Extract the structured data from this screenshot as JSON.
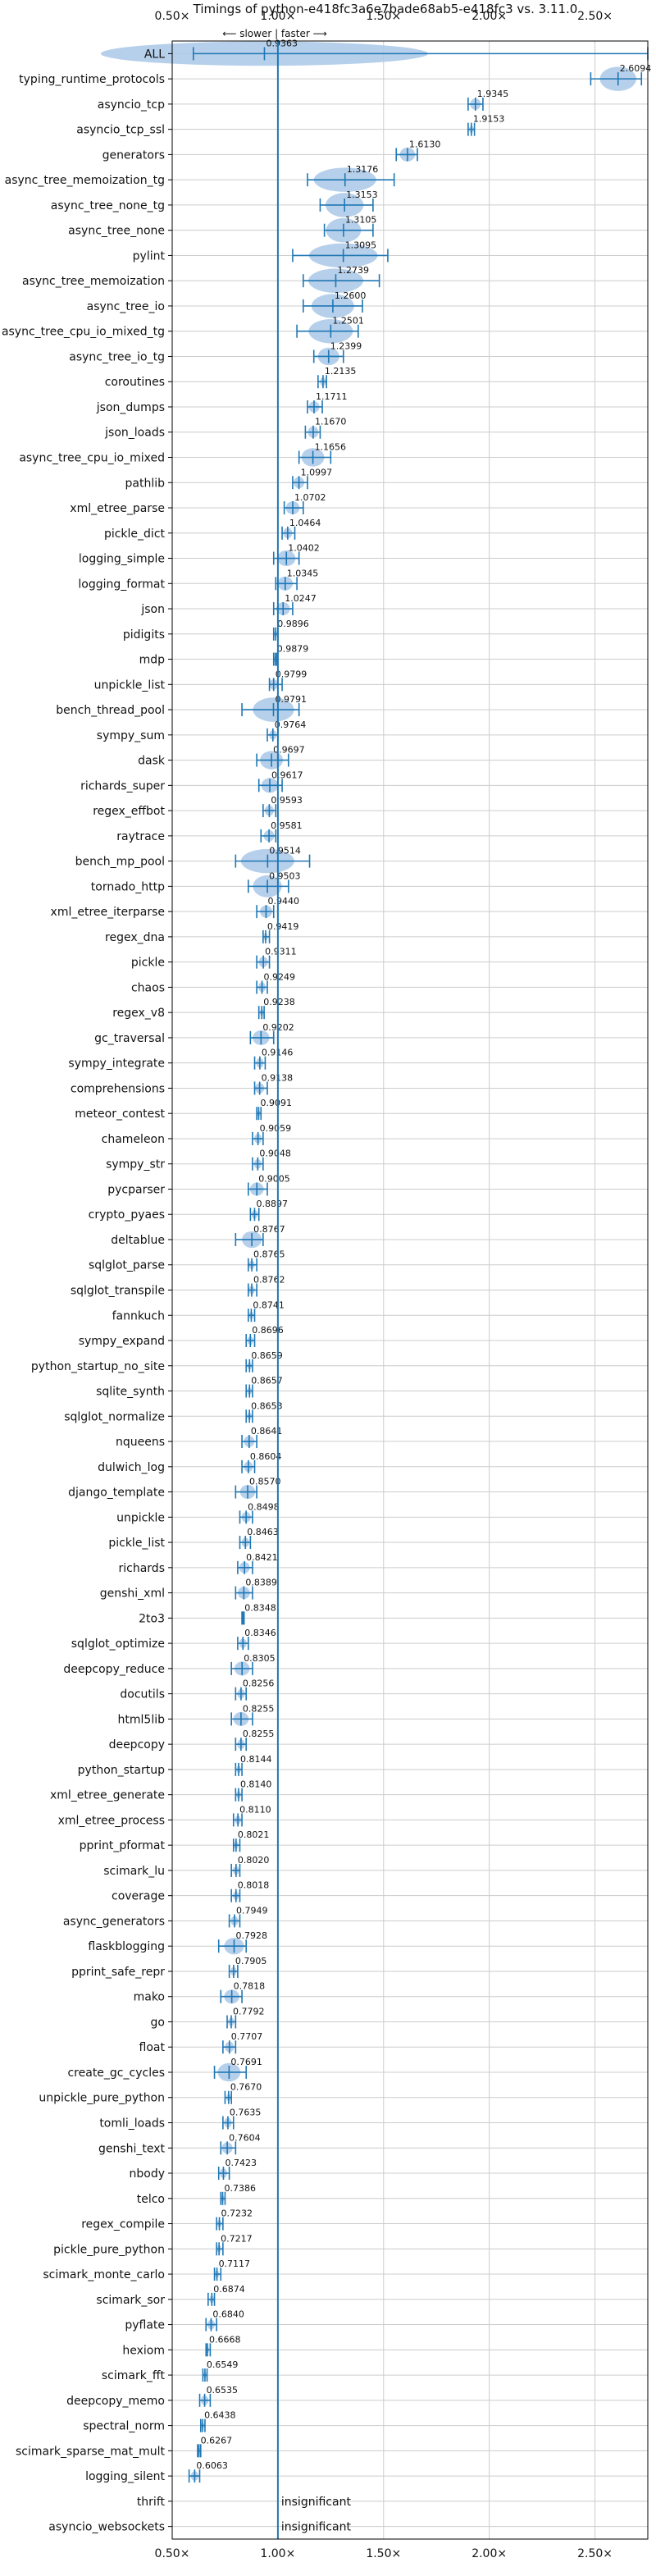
{
  "chart_data": {
    "type": "violin",
    "title": "Timings of python-e418fc3a6e7bade68ab5-e418fc3 vs. 3.11.0",
    "hint": "⟵ slower | faster ⟶",
    "xlim": [
      0.5,
      2.75
    ],
    "xticks": [
      0.5,
      1.0,
      1.5,
      2.0,
      2.5
    ],
    "xtick_labels": [
      "0.50×",
      "1.00×",
      "1.50×",
      "2.00×",
      "2.50×"
    ],
    "reference_line": 1.0,
    "insignificant_label": "insignificant",
    "colors": {
      "violin": "#a9c8e8",
      "line": "#1f77b4",
      "reference": "#1f77b4",
      "grid": "#cccccc",
      "median": "#ff7f0e"
    },
    "categories": [
      {
        "name": "ALL",
        "value": 0.9363,
        "label": "0.9363",
        "lo": 0.6,
        "hi": 2.75
      },
      {
        "name": "typing_runtime_protocols",
        "value": 2.6094,
        "label": "2.6094",
        "lo": 2.48,
        "hi": 2.72
      },
      {
        "name": "asyncio_tcp",
        "value": 1.9345,
        "label": "1.9345",
        "lo": 1.9,
        "hi": 1.97
      },
      {
        "name": "asyncio_tcp_ssl",
        "value": 1.9153,
        "label": "1.9153",
        "lo": 1.9,
        "hi": 1.93
      },
      {
        "name": "generators",
        "value": 1.613,
        "label": "1.6130",
        "lo": 1.56,
        "hi": 1.66
      },
      {
        "name": "async_tree_memoization_tg",
        "value": 1.3176,
        "label": "1.3176",
        "lo": 1.14,
        "hi": 1.55
      },
      {
        "name": "async_tree_none_tg",
        "value": 1.3153,
        "label": "1.3153",
        "lo": 1.2,
        "hi": 1.45
      },
      {
        "name": "async_tree_none",
        "value": 1.3105,
        "label": "1.3105",
        "lo": 1.22,
        "hi": 1.45
      },
      {
        "name": "pylint",
        "value": 1.3095,
        "label": "1.3095",
        "lo": 1.07,
        "hi": 1.52
      },
      {
        "name": "async_tree_memoization",
        "value": 1.2739,
        "label": "1.2739",
        "lo": 1.12,
        "hi": 1.48
      },
      {
        "name": "async_tree_io",
        "value": 1.26,
        "label": "1.2600",
        "lo": 1.12,
        "hi": 1.4
      },
      {
        "name": "async_tree_cpu_io_mixed_tg",
        "value": 1.2501,
        "label": "1.2501",
        "lo": 1.09,
        "hi": 1.38
      },
      {
        "name": "async_tree_io_tg",
        "value": 1.2399,
        "label": "1.2399",
        "lo": 1.17,
        "hi": 1.31
      },
      {
        "name": "coroutines",
        "value": 1.2135,
        "label": "1.2135",
        "lo": 1.19,
        "hi": 1.23
      },
      {
        "name": "json_dumps",
        "value": 1.1711,
        "label": "1.1711",
        "lo": 1.14,
        "hi": 1.21
      },
      {
        "name": "json_loads",
        "value": 1.167,
        "label": "1.1670",
        "lo": 1.13,
        "hi": 1.2
      },
      {
        "name": "async_tree_cpu_io_mixed",
        "value": 1.1656,
        "label": "1.1656",
        "lo": 1.1,
        "hi": 1.25
      },
      {
        "name": "pathlib",
        "value": 1.0997,
        "label": "1.0997",
        "lo": 1.07,
        "hi": 1.14
      },
      {
        "name": "xml_etree_parse",
        "value": 1.0702,
        "label": "1.0702",
        "lo": 1.03,
        "hi": 1.12
      },
      {
        "name": "pickle_dict",
        "value": 1.0464,
        "label": "1.0464",
        "lo": 1.02,
        "hi": 1.08
      },
      {
        "name": "logging_simple",
        "value": 1.0402,
        "label": "1.0402",
        "lo": 0.98,
        "hi": 1.1
      },
      {
        "name": "logging_format",
        "value": 1.0345,
        "label": "1.0345",
        "lo": 0.99,
        "hi": 1.09
      },
      {
        "name": "json",
        "value": 1.0247,
        "label": "1.0247",
        "lo": 0.98,
        "hi": 1.07
      },
      {
        "name": "pidigits",
        "value": 0.9896,
        "label": "0.9896",
        "lo": 0.98,
        "hi": 1.0
      },
      {
        "name": "mdp",
        "value": 0.9879,
        "label": "0.9879",
        "lo": 0.98,
        "hi": 0.995
      },
      {
        "name": "unpickle_list",
        "value": 0.9799,
        "label": "0.9799",
        "lo": 0.96,
        "hi": 1.02
      },
      {
        "name": "bench_thread_pool",
        "value": 0.9791,
        "label": "0.9791",
        "lo": 0.83,
        "hi": 1.1
      },
      {
        "name": "sympy_sum",
        "value": 0.9764,
        "label": "0.9764",
        "lo": 0.95,
        "hi": 1.0
      },
      {
        "name": "dask",
        "value": 0.9697,
        "label": "0.9697",
        "lo": 0.9,
        "hi": 1.05
      },
      {
        "name": "richards_super",
        "value": 0.9617,
        "label": "0.9617",
        "lo": 0.91,
        "hi": 1.02
      },
      {
        "name": "regex_effbot",
        "value": 0.9593,
        "label": "0.9593",
        "lo": 0.93,
        "hi": 0.99
      },
      {
        "name": "raytrace",
        "value": 0.9581,
        "label": "0.9581",
        "lo": 0.92,
        "hi": 0.99
      },
      {
        "name": "bench_mp_pool",
        "value": 0.9514,
        "label": "0.9514",
        "lo": 0.8,
        "hi": 1.15
      },
      {
        "name": "tornado_http",
        "value": 0.9503,
        "label": "0.9503",
        "lo": 0.86,
        "hi": 1.05
      },
      {
        "name": "xml_etree_iterparse",
        "value": 0.944,
        "label": "0.9440",
        "lo": 0.9,
        "hi": 0.98
      },
      {
        "name": "regex_dna",
        "value": 0.9419,
        "label": "0.9419",
        "lo": 0.93,
        "hi": 0.96
      },
      {
        "name": "pickle",
        "value": 0.9311,
        "label": "0.9311",
        "lo": 0.9,
        "hi": 0.96
      },
      {
        "name": "chaos",
        "value": 0.9249,
        "label": "0.9249",
        "lo": 0.9,
        "hi": 0.95
      },
      {
        "name": "regex_v8",
        "value": 0.9238,
        "label": "0.9238",
        "lo": 0.91,
        "hi": 0.935
      },
      {
        "name": "gc_traversal",
        "value": 0.9202,
        "label": "0.9202",
        "lo": 0.87,
        "hi": 0.98
      },
      {
        "name": "sympy_integrate",
        "value": 0.9146,
        "label": "0.9146",
        "lo": 0.89,
        "hi": 0.94
      },
      {
        "name": "comprehensions",
        "value": 0.9138,
        "label": "0.9138",
        "lo": 0.89,
        "hi": 0.95
      },
      {
        "name": "meteor_contest",
        "value": 0.9091,
        "label": "0.9091",
        "lo": 0.9,
        "hi": 0.92
      },
      {
        "name": "chameleon",
        "value": 0.9059,
        "label": "0.9059",
        "lo": 0.88,
        "hi": 0.93
      },
      {
        "name": "sympy_str",
        "value": 0.9048,
        "label": "0.9048",
        "lo": 0.88,
        "hi": 0.93
      },
      {
        "name": "pycparser",
        "value": 0.9005,
        "label": "0.9005",
        "lo": 0.86,
        "hi": 0.95
      },
      {
        "name": "crypto_pyaes",
        "value": 0.8897,
        "label": "0.8897",
        "lo": 0.87,
        "hi": 0.91
      },
      {
        "name": "deltablue",
        "value": 0.8767,
        "label": "0.8767",
        "lo": 0.8,
        "hi": 0.93
      },
      {
        "name": "sqlglot_parse",
        "value": 0.8765,
        "label": "0.8765",
        "lo": 0.86,
        "hi": 0.9
      },
      {
        "name": "sqlglot_transpile",
        "value": 0.8762,
        "label": "0.8762",
        "lo": 0.86,
        "hi": 0.9
      },
      {
        "name": "fannkuch",
        "value": 0.8741,
        "label": "0.8741",
        "lo": 0.86,
        "hi": 0.89
      },
      {
        "name": "sympy_expand",
        "value": 0.8696,
        "label": "0.8696",
        "lo": 0.85,
        "hi": 0.89
      },
      {
        "name": "python_startup_no_site",
        "value": 0.8659,
        "label": "0.8659",
        "lo": 0.85,
        "hi": 0.88
      },
      {
        "name": "sqlite_synth",
        "value": 0.8657,
        "label": "0.8657",
        "lo": 0.85,
        "hi": 0.88
      },
      {
        "name": "sqlglot_normalize",
        "value": 0.8653,
        "label": "0.8653",
        "lo": 0.85,
        "hi": 0.88
      },
      {
        "name": "nqueens",
        "value": 0.8641,
        "label": "0.8641",
        "lo": 0.83,
        "hi": 0.9
      },
      {
        "name": "dulwich_log",
        "value": 0.8604,
        "label": "0.8604",
        "lo": 0.83,
        "hi": 0.89
      },
      {
        "name": "django_template",
        "value": 0.857,
        "label": "0.8570",
        "lo": 0.8,
        "hi": 0.9
      },
      {
        "name": "unpickle",
        "value": 0.8498,
        "label": "0.8498",
        "lo": 0.82,
        "hi": 0.88
      },
      {
        "name": "pickle_list",
        "value": 0.8463,
        "label": "0.8463",
        "lo": 0.82,
        "hi": 0.87
      },
      {
        "name": "richards",
        "value": 0.8421,
        "label": "0.8421",
        "lo": 0.81,
        "hi": 0.88
      },
      {
        "name": "genshi_xml",
        "value": 0.8389,
        "label": "0.8389",
        "lo": 0.8,
        "hi": 0.88
      },
      {
        "name": "2to3",
        "value": 0.8348,
        "label": "0.8348",
        "lo": 0.83,
        "hi": 0.84
      },
      {
        "name": "sqlglot_optimize",
        "value": 0.8346,
        "label": "0.8346",
        "lo": 0.81,
        "hi": 0.86
      },
      {
        "name": "deepcopy_reduce",
        "value": 0.8305,
        "label": "0.8305",
        "lo": 0.78,
        "hi": 0.88
      },
      {
        "name": "docutils",
        "value": 0.8256,
        "label": "0.8256",
        "lo": 0.8,
        "hi": 0.85
      },
      {
        "name": "html5lib",
        "value": 0.8255,
        "label": "0.8255",
        "lo": 0.78,
        "hi": 0.88
      },
      {
        "name": "deepcopy",
        "value": 0.8255,
        "label": "0.8255",
        "lo": 0.8,
        "hi": 0.85
      },
      {
        "name": "python_startup",
        "value": 0.8144,
        "label": "0.8144",
        "lo": 0.8,
        "hi": 0.83
      },
      {
        "name": "xml_etree_generate",
        "value": 0.814,
        "label": "0.8140",
        "lo": 0.8,
        "hi": 0.83
      },
      {
        "name": "xml_etree_process",
        "value": 0.811,
        "label": "0.8110",
        "lo": 0.79,
        "hi": 0.83
      },
      {
        "name": "pprint_pformat",
        "value": 0.8021,
        "label": "0.8021",
        "lo": 0.79,
        "hi": 0.82
      },
      {
        "name": "scimark_lu",
        "value": 0.802,
        "label": "0.8020",
        "lo": 0.78,
        "hi": 0.82
      },
      {
        "name": "coverage",
        "value": 0.8018,
        "label": "0.8018",
        "lo": 0.78,
        "hi": 0.82
      },
      {
        "name": "async_generators",
        "value": 0.7949,
        "label": "0.7949",
        "lo": 0.77,
        "hi": 0.82
      },
      {
        "name": "flaskblogging",
        "value": 0.7928,
        "label": "0.7928",
        "lo": 0.72,
        "hi": 0.85
      },
      {
        "name": "pprint_safe_repr",
        "value": 0.7905,
        "label": "0.7905",
        "lo": 0.77,
        "hi": 0.81
      },
      {
        "name": "mako",
        "value": 0.7818,
        "label": "0.7818",
        "lo": 0.73,
        "hi": 0.83
      },
      {
        "name": "go",
        "value": 0.7792,
        "label": "0.7792",
        "lo": 0.76,
        "hi": 0.8
      },
      {
        "name": "float",
        "value": 0.7707,
        "label": "0.7707",
        "lo": 0.74,
        "hi": 0.8
      },
      {
        "name": "create_gc_cycles",
        "value": 0.7691,
        "label": "0.7691",
        "lo": 0.7,
        "hi": 0.85
      },
      {
        "name": "unpickle_pure_python",
        "value": 0.767,
        "label": "0.7670",
        "lo": 0.75,
        "hi": 0.78
      },
      {
        "name": "tomli_loads",
        "value": 0.7635,
        "label": "0.7635",
        "lo": 0.74,
        "hi": 0.79
      },
      {
        "name": "genshi_text",
        "value": 0.7604,
        "label": "0.7604",
        "lo": 0.73,
        "hi": 0.8
      },
      {
        "name": "nbody",
        "value": 0.7423,
        "label": "0.7423",
        "lo": 0.72,
        "hi": 0.77
      },
      {
        "name": "telco",
        "value": 0.7386,
        "label": "0.7386",
        "lo": 0.73,
        "hi": 0.75
      },
      {
        "name": "regex_compile",
        "value": 0.7232,
        "label": "0.7232",
        "lo": 0.71,
        "hi": 0.74
      },
      {
        "name": "pickle_pure_python",
        "value": 0.7217,
        "label": "0.7217",
        "lo": 0.71,
        "hi": 0.74
      },
      {
        "name": "scimark_monte_carlo",
        "value": 0.7117,
        "label": "0.7117",
        "lo": 0.7,
        "hi": 0.73
      },
      {
        "name": "scimark_sor",
        "value": 0.6874,
        "label": "0.6874",
        "lo": 0.67,
        "hi": 0.7
      },
      {
        "name": "pyflate",
        "value": 0.684,
        "label": "0.6840",
        "lo": 0.66,
        "hi": 0.71
      },
      {
        "name": "hexiom",
        "value": 0.6668,
        "label": "0.6668",
        "lo": 0.66,
        "hi": 0.68
      },
      {
        "name": "scimark_fft",
        "value": 0.6549,
        "label": "0.6549",
        "lo": 0.645,
        "hi": 0.665
      },
      {
        "name": "deepcopy_memo",
        "value": 0.6535,
        "label": "0.6535",
        "lo": 0.63,
        "hi": 0.68
      },
      {
        "name": "spectral_norm",
        "value": 0.6438,
        "label": "0.6438",
        "lo": 0.635,
        "hi": 0.655
      },
      {
        "name": "scimark_sparse_mat_mult",
        "value": 0.6267,
        "label": "0.6267",
        "lo": 0.62,
        "hi": 0.635
      },
      {
        "name": "logging_silent",
        "value": 0.6063,
        "label": "0.6063",
        "lo": 0.58,
        "hi": 0.63
      },
      {
        "name": "thrift",
        "value": null,
        "label": "",
        "lo": null,
        "hi": null
      },
      {
        "name": "asyncio_websockets",
        "value": null,
        "label": "",
        "lo": null,
        "hi": null
      }
    ]
  }
}
